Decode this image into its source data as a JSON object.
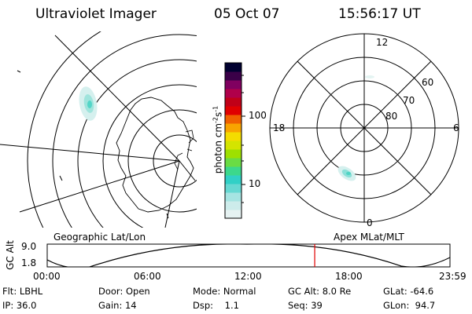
{
  "header": {
    "instrument": "Ultraviolet Imager",
    "date": "05 Oct 07",
    "time": "15:56:17 UT"
  },
  "colorbar": {
    "label": "photon cm",
    "label_sup1": "-2",
    "label_mid": "s",
    "label_sup2": "-1",
    "scale": "log",
    "ticks": [
      "100",
      "10"
    ],
    "tick_values": [
      100,
      10
    ],
    "colors": [
      "#e6f2f2",
      "#cdeceb",
      "#a6e4e2",
      "#66d8d2",
      "#31d0c6",
      "#3cd88c",
      "#6adc44",
      "#9ee000",
      "#d4e400",
      "#f4dc00",
      "#f8a400",
      "#f06000",
      "#e00000",
      "#c00018",
      "#b0004a",
      "#800060",
      "#3a0048",
      "#000030"
    ]
  },
  "map_left": {
    "label": "Geographic Lat/Lon"
  },
  "map_right": {
    "label": "Apex MLat/MLT",
    "mlt_labels": [
      "12",
      "18",
      "6",
      "0"
    ],
    "mlat_labels": [
      "60",
      "70",
      "80"
    ]
  },
  "altitude_panel": {
    "axis_title": "GC Alt",
    "y_max": "9.0",
    "y_min": "1.8",
    "x_ticks": [
      "00:00",
      "06:00",
      "12:00",
      "18:00",
      "23:59"
    ],
    "current_time_hours": 15.94
  },
  "status": {
    "row1": [
      "Flt: LBHL",
      "Door: Open",
      "Mode: Normal",
      "GC Alt: 8.0 Re",
      "GLat: -64.6"
    ],
    "row2": [
      "IP: 36.0",
      "Gain: 14",
      "Dsp:    1.1",
      "Seq: 39",
      "GLon:  94.7"
    ]
  }
}
